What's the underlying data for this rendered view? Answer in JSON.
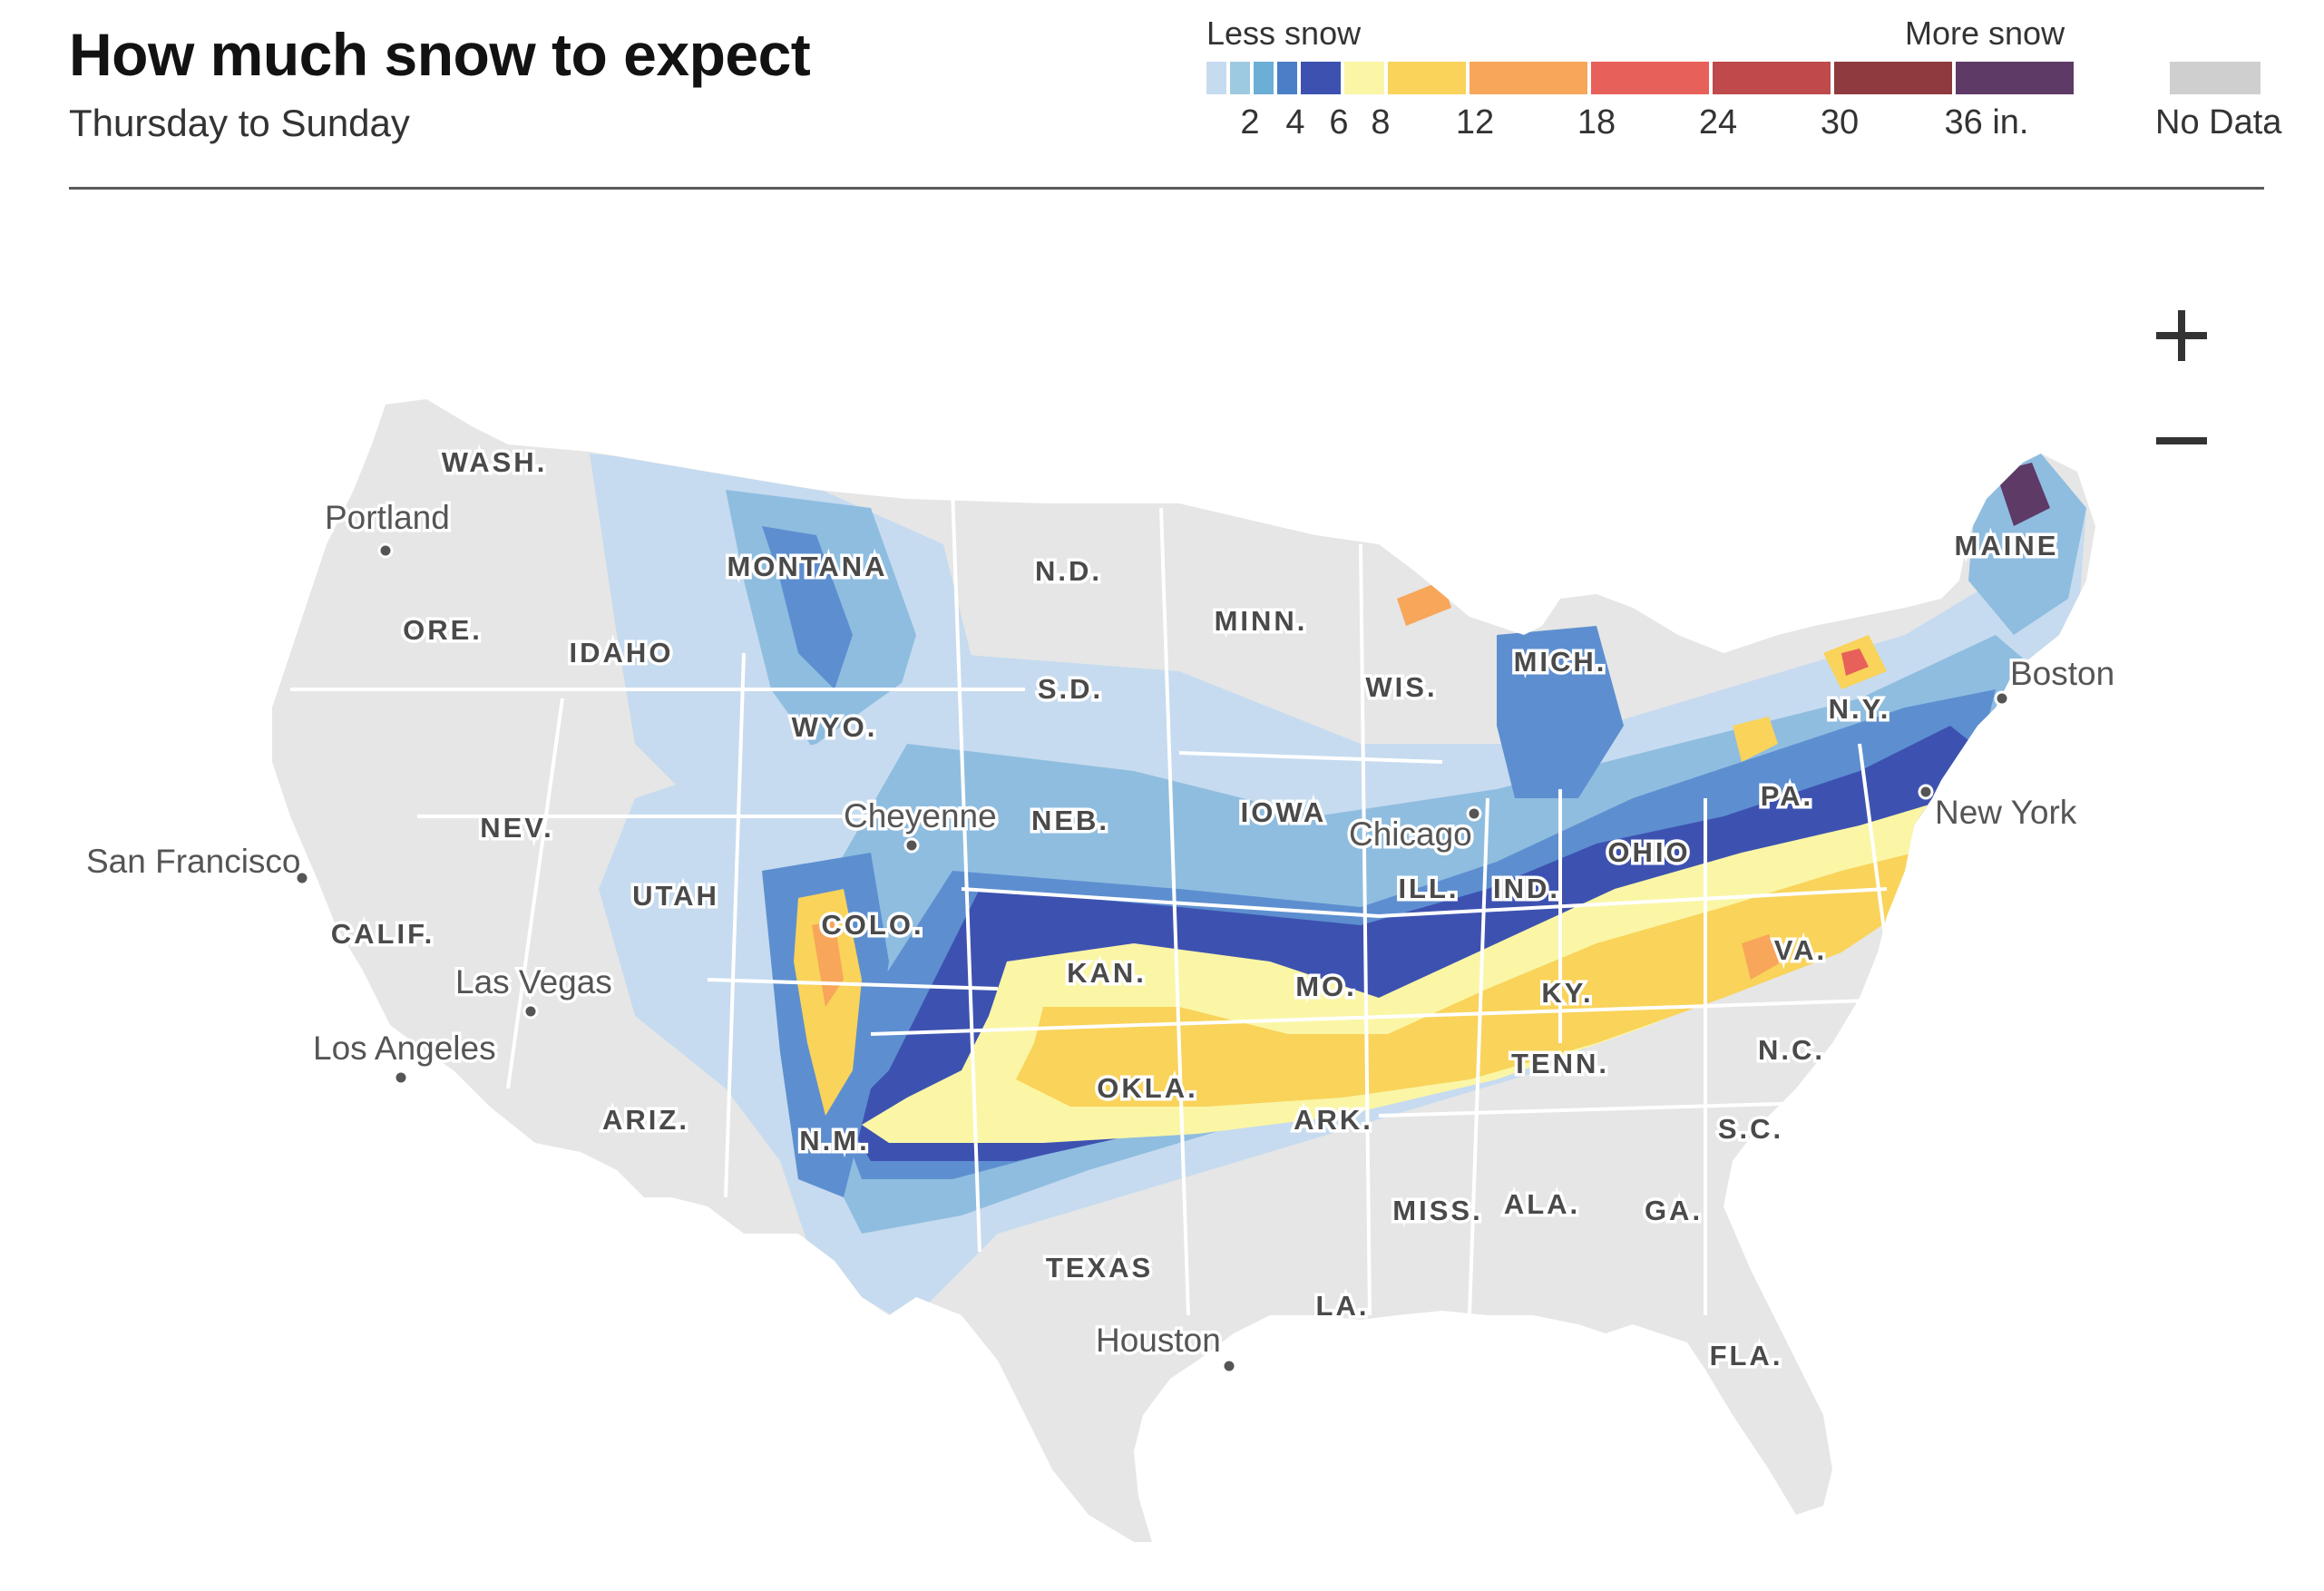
{
  "header": {
    "title": "How much snow to expect",
    "subtitle": "Thursday to Sunday"
  },
  "legend": {
    "less_label": "Less snow",
    "more_label": "More snow",
    "no_data_label": "No Data",
    "no_data_color": "#cfcfcf",
    "swatch_colors": [
      "#c6dbef",
      "#9ecae1",
      "#6baed6",
      "#4a7fc8",
      "#3d52b0",
      "#faf6a6",
      "#f9d35a",
      "#f7a65a",
      "#e8605a",
      "#be4a4c",
      "#8e3a3e",
      "#5e3a66"
    ],
    "ticks": [
      "2",
      "4",
      "6",
      "8",
      "12",
      "18",
      "24",
      "30",
      "36 in."
    ]
  },
  "controls": {
    "zoom_in_icon": "plus-icon",
    "zoom_out_icon": "minus-icon"
  },
  "map": {
    "land_color": "#e6e6e6",
    "border_color": "#ffffff",
    "band_colors": {
      "light": "#c6dbef",
      "medium": "#8fbde0",
      "blue": "#5d8fd0",
      "dark_blue": "#3d52b0",
      "pale_yellow": "#faf6a6",
      "yellow": "#f9d35a",
      "orange": "#f7a65a",
      "red": "#e8605a"
    },
    "state_labels": {
      "wash": "WASH.",
      "ore": "ORE.",
      "calif": "CALIF.",
      "idaho": "IDAHO",
      "nev": "NEV.",
      "montana": "MONTANA",
      "wyo": "WYO.",
      "utah": "UTAH",
      "ariz": "ARIZ.",
      "colo": "COLO.",
      "nm": "N.M.",
      "nd": "N.D.",
      "sd": "S.D.",
      "neb": "NEB.",
      "kan": "KAN.",
      "okla": "OKLA.",
      "texas": "TEXAS",
      "minn": "MINN.",
      "iowa": "IOWA",
      "mo": "MO.",
      "ark": "ARK.",
      "la": "LA.",
      "wis": "WIS.",
      "ill": "ILL.",
      "mich": "MICH.",
      "ind": "IND.",
      "ohio": "OHIO",
      "ky": "KY.",
      "tenn": "TENN.",
      "miss": "MISS.",
      "ala": "ALA.",
      "ga": "GA.",
      "fla": "FLA.",
      "sc": "S.C.",
      "nc": "N.C.",
      "va": "VA.",
      "pa": "PA.",
      "ny": "N.Y.",
      "maine": "MAINE"
    },
    "cities": {
      "portland": "Portland",
      "san_francisco": "San Francisco",
      "las_vegas": "Las Vegas",
      "los_angeles": "Los Angeles",
      "cheyenne": "Cheyenne",
      "chicago": "Chicago",
      "houston": "Houston",
      "boston": "Boston",
      "new_york": "New York"
    }
  }
}
